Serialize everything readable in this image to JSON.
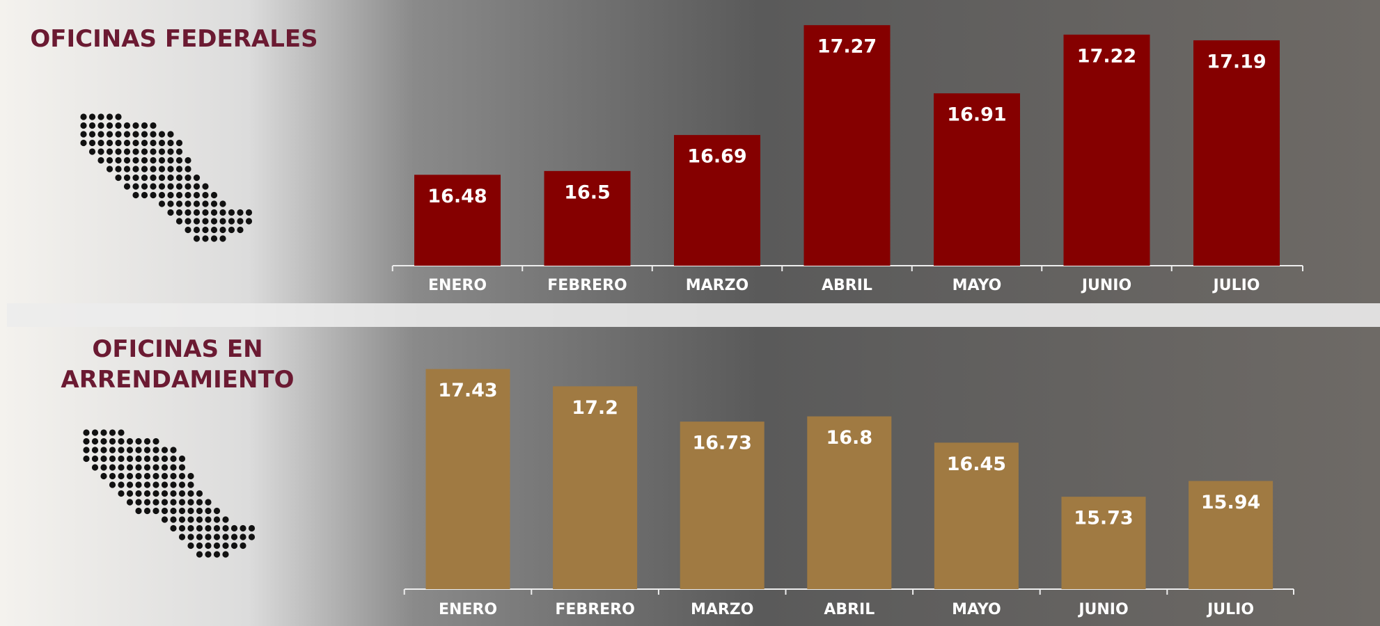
{
  "chart_data": [
    {
      "type": "bar",
      "title": "OFICINAS FEDERALES",
      "categories": [
        "ENERO",
        "FEBRERO",
        "MARZO",
        "ABRIL",
        "MAYO",
        "JUNIO",
        "JULIO"
      ],
      "values": [
        16.48,
        16.5,
        16.69,
        17.27,
        16.91,
        17.22,
        17.19
      ],
      "color": "#850000",
      "ylim": [
        16.0,
        17.3
      ]
    },
    {
      "type": "bar",
      "title": "OFICINAS EN ARRENDAMIENTO",
      "categories": [
        "ENERO",
        "FEBRERO",
        "MARZO",
        "ABRIL",
        "MAYO",
        "JUNIO",
        "JULIO"
      ],
      "values": [
        17.43,
        17.2,
        16.73,
        16.8,
        16.45,
        15.73,
        15.94
      ],
      "color": "#a07a42",
      "ylim": [
        14.5,
        17.5
      ]
    }
  ]
}
